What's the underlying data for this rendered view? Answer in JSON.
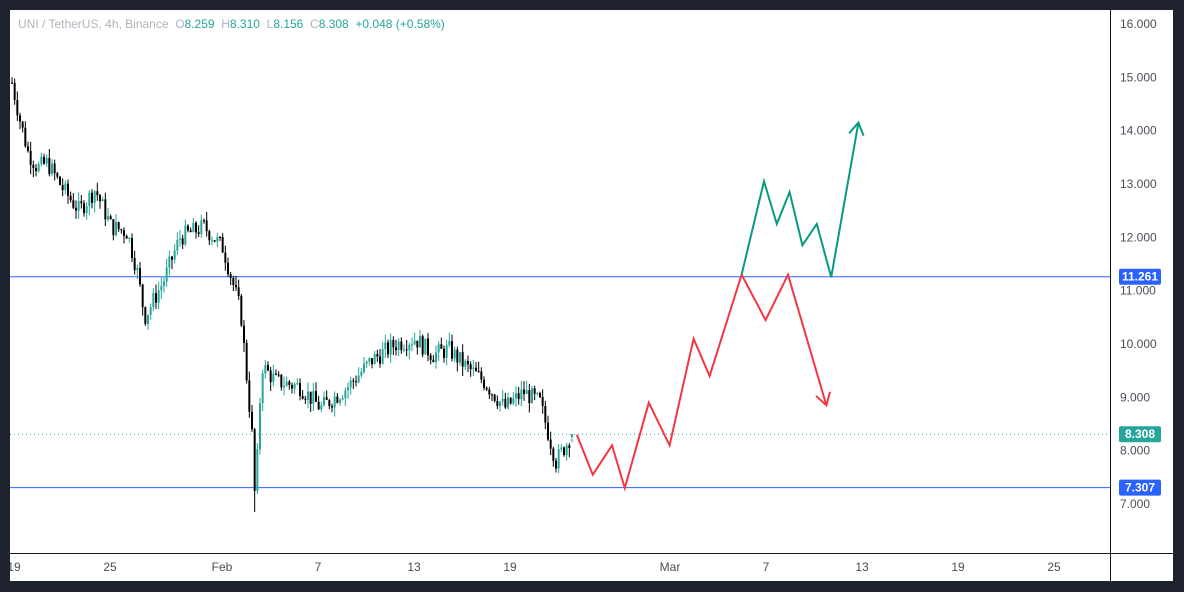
{
  "legend": {
    "symbol": "UNI / TetherUS, 4h, Binance",
    "open_label": "O",
    "open": "8.259",
    "high_label": "H",
    "high": "8.310",
    "low_label": "L",
    "low": "8.156",
    "close_label": "C",
    "close": "8.308",
    "change": "+0.048 (+0.58%)"
  },
  "colors": {
    "up": "#26a69a",
    "down": "#000000",
    "level_line": "#2962ff",
    "tag_blue": "#2962ff",
    "tag_price": "#26a69a",
    "path_red": "#f23645",
    "path_green": "#089981"
  },
  "chart_data": {
    "type": "candlestick",
    "title": "",
    "ylim": [
      6.1,
      16.3
    ],
    "y_ticks": [
      "16.000",
      "15.000",
      "14.000",
      "13.000",
      "12.000",
      "11.000",
      "10.000",
      "9.000",
      "8.000",
      "7.000"
    ],
    "x_ticks": [
      "19",
      "25",
      "Feb",
      "7",
      "13",
      "19",
      "Mar",
      "7",
      "13",
      "19",
      "25"
    ],
    "levels": [
      {
        "value": 11.261,
        "label": "11.261"
      },
      {
        "value": 7.307,
        "label": "7.307"
      }
    ],
    "last_price": {
      "value": 8.308,
      "label": "8.308"
    },
    "price_waypoints": [
      {
        "day": 0.0,
        "price": 14.9
      },
      {
        "day": 0.5,
        "price": 14.2
      },
      {
        "day": 1.0,
        "price": 13.6
      },
      {
        "day": 1.6,
        "price": 13.3
      },
      {
        "day": 2.2,
        "price": 13.4
      },
      {
        "day": 3.2,
        "price": 12.9
      },
      {
        "day": 4.2,
        "price": 12.5
      },
      {
        "day": 5.2,
        "price": 12.9
      },
      {
        "day": 6.2,
        "price": 12.2
      },
      {
        "day": 7.2,
        "price": 12.1
      },
      {
        "day": 7.8,
        "price": 11.4
      },
      {
        "day": 8.3,
        "price": 10.5
      },
      {
        "day": 9.5,
        "price": 11.2
      },
      {
        "day": 10.5,
        "price": 12.0
      },
      {
        "day": 12.0,
        "price": 12.2
      },
      {
        "day": 13.2,
        "price": 11.8
      },
      {
        "day": 14.3,
        "price": 10.6
      },
      {
        "day": 15.0,
        "price": 8.3
      },
      {
        "day": 15.2,
        "price": 7.0
      },
      {
        "day": 15.6,
        "price": 9.6
      },
      {
        "day": 16.5,
        "price": 9.3
      },
      {
        "day": 18.0,
        "price": 9.2
      },
      {
        "day": 19.3,
        "price": 8.8
      },
      {
        "day": 21.0,
        "price": 9.2
      },
      {
        "day": 22.5,
        "price": 9.7
      },
      {
        "day": 24.0,
        "price": 10.0
      },
      {
        "day": 25.2,
        "price": 10.1
      },
      {
        "day": 26.3,
        "price": 9.8
      },
      {
        "day": 27.3,
        "price": 9.9
      },
      {
        "day": 28.3,
        "price": 9.6
      },
      {
        "day": 29.5,
        "price": 9.3
      },
      {
        "day": 30.8,
        "price": 8.8
      },
      {
        "day": 32.0,
        "price": 9.1
      },
      {
        "day": 33.0,
        "price": 8.9
      },
      {
        "day": 34.0,
        "price": 7.8
      },
      {
        "day": 34.6,
        "price": 8.1
      },
      {
        "day": 35.0,
        "price": 8.31
      }
    ],
    "projection_red": [
      {
        "day": 35.3,
        "price": 8.3
      },
      {
        "day": 36.3,
        "price": 7.55
      },
      {
        "day": 37.5,
        "price": 8.1
      },
      {
        "day": 38.3,
        "price": 7.3
      },
      {
        "day": 39.8,
        "price": 8.9
      },
      {
        "day": 41.1,
        "price": 8.1
      },
      {
        "day": 42.6,
        "price": 10.1
      },
      {
        "day": 43.6,
        "price": 9.4
      },
      {
        "day": 45.6,
        "price": 11.3
      },
      {
        "day": 47.1,
        "price": 10.45
      },
      {
        "day": 48.5,
        "price": 11.3
      },
      {
        "day": 50.9,
        "price": 8.85
      }
    ],
    "projection_green": [
      {
        "day": 45.6,
        "price": 11.3
      },
      {
        "day": 47.0,
        "price": 13.05
      },
      {
        "day": 47.8,
        "price": 12.25
      },
      {
        "day": 48.6,
        "price": 12.85
      },
      {
        "day": 49.4,
        "price": 11.85
      },
      {
        "day": 50.3,
        "price": 12.25
      },
      {
        "day": 51.2,
        "price": 11.25
      },
      {
        "day": 52.9,
        "price": 14.15
      }
    ]
  }
}
